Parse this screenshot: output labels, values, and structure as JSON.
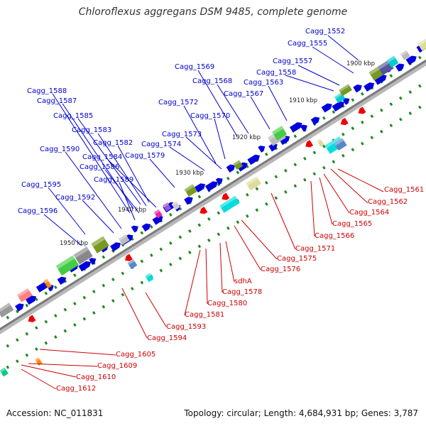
{
  "title": "Chloroflexus aggregans DSM 9485, complete genome",
  "footer": {
    "accession": "Accession: NC_011831",
    "summary": "Topology: circular; Length: 4,684,931 bp; Genes: 3,787"
  },
  "colors": {
    "forward_label": "#0000cc",
    "reverse_label": "#cc0000",
    "forward_gene": "#0000dd",
    "reverse_gene": "#ee0000",
    "backbone": "#808080"
  },
  "scale_labels": [
    "1900 kbp",
    "1910 kbp",
    "1920 kbp",
    "1930 kbp",
    "1940 kbp",
    "1950 kbp"
  ],
  "forward_labels": [
    "Cagg_1552",
    "Cagg_1555",
    "Cagg_1557",
    "Cagg_1558",
    "Cagg_1563",
    "Cagg_1567",
    "Cagg_1568",
    "Cagg_1569",
    "Cagg_1570",
    "Cagg_1572",
    "Cagg_1573",
    "Cagg_1574",
    "Cagg_1579",
    "Cagg_1582",
    "Cagg_1583",
    "Cagg_1584",
    "Cagg_1585",
    "Cagg_1586",
    "Cagg_1587",
    "Cagg_1588",
    "Cagg_1589",
    "Cagg_1590",
    "Cagg_1592",
    "Cagg_1595",
    "Cagg_1596"
  ],
  "reverse_labels": [
    "Cagg_1561",
    "Cagg_1562",
    "Cagg_1564",
    "Cagg_1565",
    "Cagg_1566",
    "Cagg_1571",
    "Cagg_1575",
    "Cagg_1576",
    "sdhA",
    "Cagg_1578",
    "Cagg_1580",
    "Cagg_1581",
    "Cagg_1593",
    "Cagg_1594",
    "Cagg_1605",
    "Cagg_1609",
    "Cagg_1610",
    "Cagg_1612"
  ]
}
